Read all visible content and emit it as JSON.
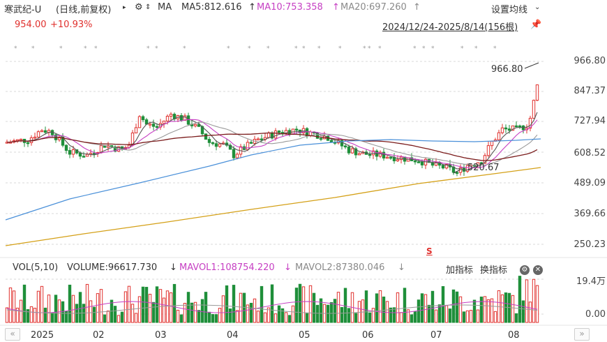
{
  "header": {
    "name": "寒武纪-U",
    "period": "(日线,前复权)",
    "ma_label": "MA",
    "ma5": "MA5:812.616",
    "ma10": "MA10:753.358",
    "ma20": "MA20:697.260",
    "settings_label": "设置均线"
  },
  "quote": {
    "price": "954.00",
    "change": "+10.93%",
    "range": "2024/12/24-2025/8/14(156根)"
  },
  "price_axis": [
    "966.80",
    "847.37",
    "727.94",
    "608.52",
    "489.09",
    "369.66",
    "250.23"
  ],
  "annotations": {
    "high": "966.80",
    "low": "520.67",
    "marker": "S"
  },
  "volume": {
    "vol_label": "VOL(5,10)",
    "volume": "VOLUME:96617.730",
    "mavol1": "MAVOL1:108754.220",
    "mavol2": "MAVOL2:87380.046",
    "add_indicator": "加指标",
    "switch_indicator": "换指标",
    "axis_top": "19.4万",
    "axis_bottom": "0.00"
  },
  "x_axis": [
    "2025",
    "02",
    "03",
    "04",
    "05",
    "06",
    "07",
    "08"
  ],
  "colors": {
    "up": "#e0302d",
    "down": "#1f8f3a",
    "ma5": "#555555",
    "ma10": "#c63fc3",
    "ma20": "#999999",
    "ma60": "#7a1b1b",
    "ma120": "#4a90d9",
    "ma250": "#d4a017"
  }
}
